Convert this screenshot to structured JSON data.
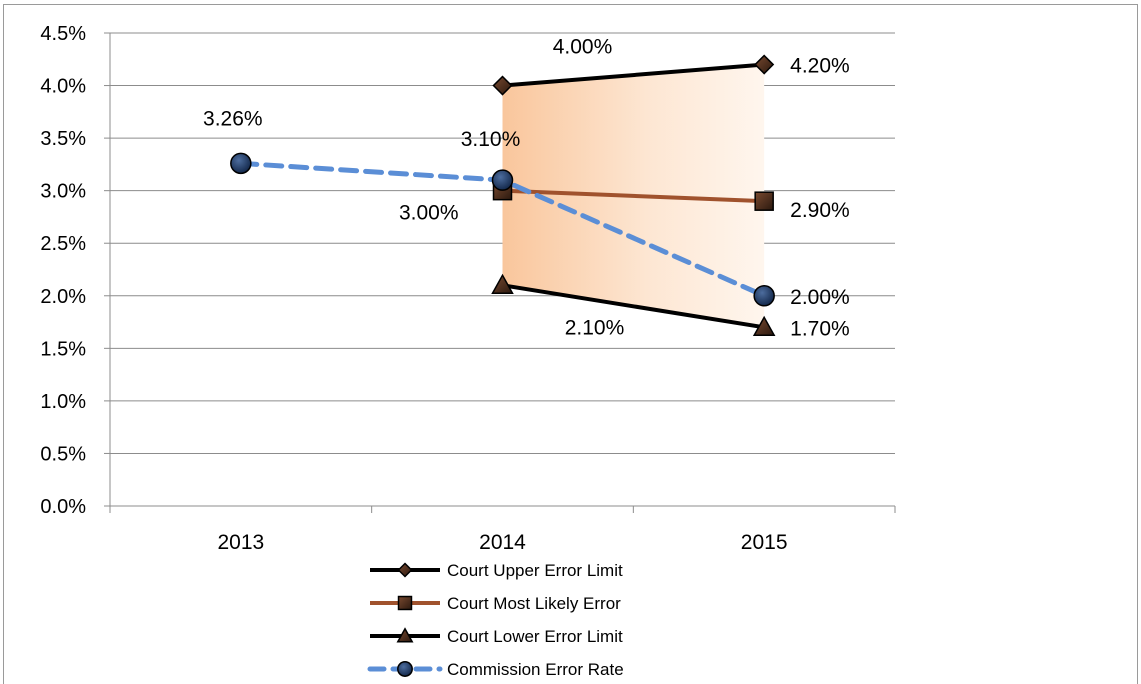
{
  "chart_data": {
    "type": "line",
    "categories": [
      "2013",
      "2014",
      "2015"
    ],
    "ylim": [
      0,
      4.5
    ],
    "yticks": [
      0,
      0.5,
      1.0,
      1.5,
      2.0,
      2.5,
      3.0,
      3.5,
      4.0,
      4.5
    ],
    "ytick_labels": [
      "0.0%",
      "0.5%",
      "1.0%",
      "1.5%",
      "2.0%",
      "2.5%",
      "3.0%",
      "3.5%",
      "4.0%",
      "4.5%"
    ],
    "grid": true,
    "legend_position": "bottom",
    "band": {
      "between": [
        "Court Upper Error Limit",
        "Court Lower Error Limit"
      ],
      "color": "#f9c9a0"
    },
    "series": [
      {
        "name": "Court Upper Error Limit",
        "marker": "diamond",
        "color": "#000000",
        "marker_color": "#4a2e1f",
        "values": [
          null,
          4.0,
          4.2
        ],
        "labels": [
          null,
          "4.00%",
          "4.20%"
        ]
      },
      {
        "name": "Court Most Likely Error",
        "marker": "square",
        "color": "#a0522d",
        "marker_color": "#4a2e1f",
        "values": [
          null,
          3.0,
          2.9
        ],
        "labels": [
          null,
          "3.00%",
          "2.90%"
        ]
      },
      {
        "name": "Court Lower Error Limit",
        "marker": "triangle",
        "color": "#000000",
        "marker_color": "#4a2e1f",
        "values": [
          null,
          2.1,
          1.7
        ],
        "labels": [
          null,
          "2.10%",
          "1.70%"
        ]
      },
      {
        "name": "Commission Error Rate",
        "marker": "circle",
        "color": "#5b8ed6",
        "marker_color": "#1f3a6b",
        "dashed": true,
        "values": [
          3.26,
          3.1,
          2.0
        ],
        "labels": [
          "3.26%",
          "3.10%",
          "2.00%"
        ]
      }
    ]
  }
}
